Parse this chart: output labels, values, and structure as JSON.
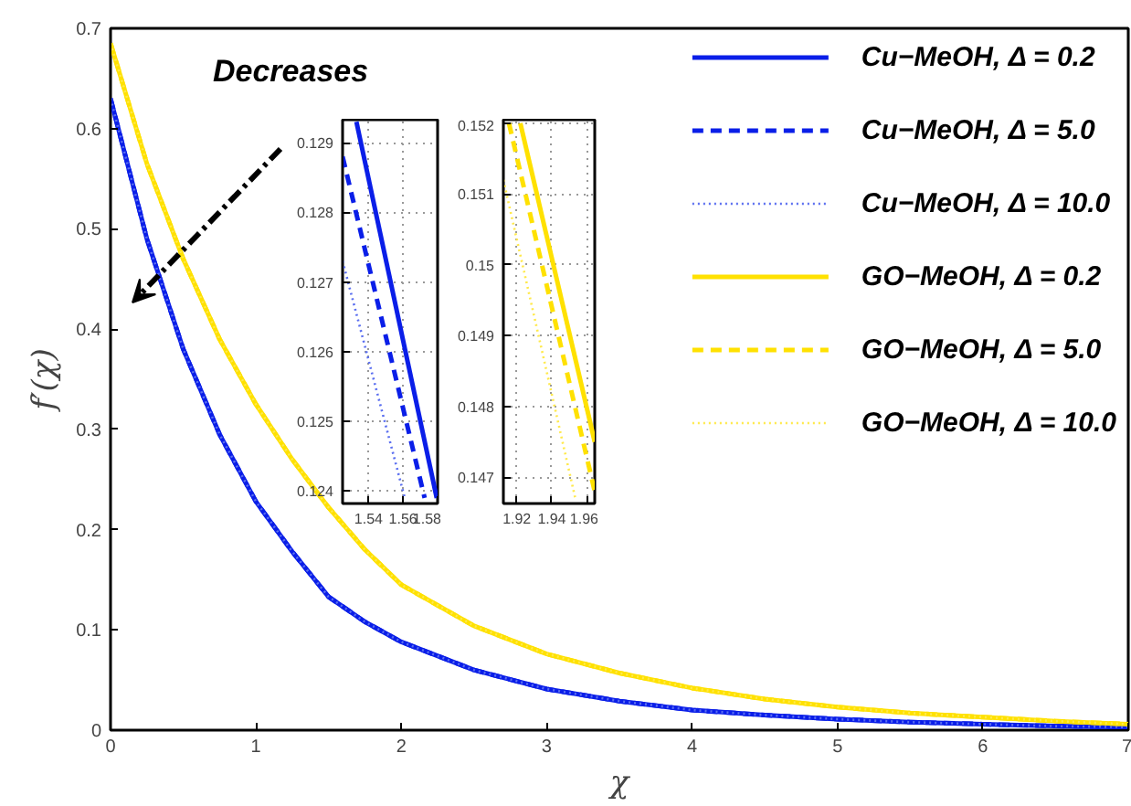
{
  "chart_data": [
    {
      "type": "line",
      "xlabel": "χ",
      "ylabel": "f′(χ)",
      "xlim": [
        0,
        7
      ],
      "ylim": [
        0,
        0.7
      ],
      "xticks": [
        0,
        1,
        2,
        3,
        4,
        5,
        6,
        7
      ],
      "yticks": [
        0,
        0.1,
        0.2,
        0.3,
        0.4,
        0.5,
        0.6,
        0.7
      ],
      "grid": false,
      "legend": "top right",
      "annotations": [
        "Decreases"
      ],
      "x": [
        0,
        0.25,
        0.5,
        0.75,
        1,
        1.25,
        1.5,
        1.75,
        2,
        2.5,
        3,
        3.5,
        4,
        4.5,
        5,
        5.5,
        6,
        6.5,
        7
      ],
      "series": [
        {
          "name": "Cu−MeOH, Δ = 0.2",
          "color": "#0a1ee8",
          "line_style": "solid",
          "values": [
            0.63,
            0.49,
            0.38,
            0.295,
            0.228,
            0.178,
            0.133,
            0.108,
            0.088,
            0.06,
            0.041,
            0.029,
            0.02,
            0.015,
            0.011,
            0.008,
            0.006,
            0.004,
            0.003
          ]
        },
        {
          "name": "Cu−MeOH, Δ = 5.0",
          "color": "#0a1ee8",
          "line_style": "dashed",
          "values": [
            0.63,
            0.49,
            0.38,
            0.295,
            0.228,
            0.178,
            0.133,
            0.108,
            0.088,
            0.06,
            0.041,
            0.029,
            0.02,
            0.015,
            0.011,
            0.008,
            0.006,
            0.004,
            0.003
          ]
        },
        {
          "name": "Cu−MeOH, Δ = 10.0",
          "color": "#5a6ef0",
          "line_style": "dotted",
          "values": [
            0.63,
            0.49,
            0.38,
            0.295,
            0.228,
            0.178,
            0.133,
            0.108,
            0.088,
            0.06,
            0.041,
            0.029,
            0.02,
            0.015,
            0.011,
            0.008,
            0.006,
            0.004,
            0.003
          ]
        },
        {
          "name": "GO−MeOH, Δ = 0.2",
          "color": "#ffe100",
          "line_style": "solid",
          "values": [
            0.685,
            0.565,
            0.47,
            0.39,
            0.325,
            0.27,
            0.222,
            0.18,
            0.145,
            0.104,
            0.076,
            0.057,
            0.042,
            0.031,
            0.023,
            0.017,
            0.013,
            0.009,
            0.006
          ]
        },
        {
          "name": "GO−MeOH, Δ = 5.0",
          "color": "#ffe100",
          "line_style": "dashed",
          "values": [
            0.685,
            0.565,
            0.47,
            0.39,
            0.325,
            0.27,
            0.222,
            0.18,
            0.145,
            0.104,
            0.076,
            0.057,
            0.042,
            0.031,
            0.023,
            0.017,
            0.013,
            0.009,
            0.006
          ]
        },
        {
          "name": "GO−MeOH, Δ = 10.0",
          "color": "#ffe94a",
          "line_style": "dotted",
          "values": [
            0.685,
            0.565,
            0.47,
            0.39,
            0.325,
            0.27,
            0.222,
            0.18,
            0.145,
            0.104,
            0.076,
            0.057,
            0.042,
            0.031,
            0.023,
            0.017,
            0.013,
            0.009,
            0.006
          ]
        }
      ]
    },
    {
      "type": "line",
      "xlim": [
        1.525,
        1.58
      ],
      "ylim": [
        0.12382,
        0.12933
      ],
      "xticks": [
        1.54,
        1.56,
        1.58
      ],
      "yticks": [
        0.124,
        0.125,
        0.126,
        0.127,
        0.128,
        0.129
      ],
      "grid": true,
      "series": [
        {
          "color": "#0a1ee8",
          "line_style": "solid",
          "x": [
            1.533,
            1.5795
          ],
          "values": [
            0.1293,
            0.1239
          ]
        },
        {
          "color": "#0a1ee8",
          "line_style": "dashed",
          "x": [
            1.525,
            1.5725
          ],
          "values": [
            0.1288,
            0.1239
          ]
        },
        {
          "color": "#5a6ef0",
          "line_style": "dotted",
          "x": [
            1.525,
            1.561
          ],
          "values": [
            0.1273,
            0.1239
          ]
        }
      ]
    },
    {
      "type": "line",
      "xlim": [
        1.9123,
        1.9646
      ],
      "ylim": [
        0.14663,
        0.15205
      ],
      "xticks": [
        1.92,
        1.94,
        1.96
      ],
      "yticks": [
        0.147,
        0.148,
        0.149,
        0.15,
        0.151,
        0.152
      ],
      "grid": true,
      "series": [
        {
          "color": "#ffe100",
          "line_style": "solid",
          "x": [
            1.922,
            1.9646
          ],
          "values": [
            0.152,
            0.1475
          ]
        },
        {
          "color": "#ffe100",
          "line_style": "dashed",
          "x": [
            1.9155,
            1.9646
          ],
          "values": [
            0.152,
            0.1468
          ]
        },
        {
          "color": "#ffe94a",
          "line_style": "dotted",
          "x": [
            1.9123,
            1.9535
          ],
          "values": [
            0.1512,
            0.1467
          ]
        }
      ]
    }
  ]
}
